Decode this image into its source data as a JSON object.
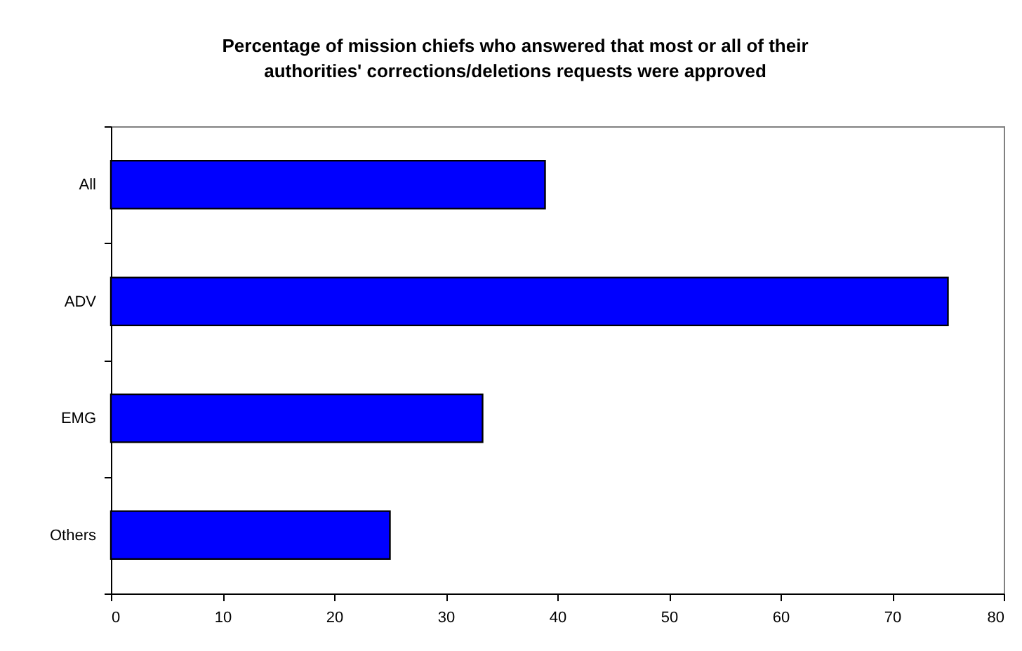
{
  "chart_data": {
    "type": "bar",
    "orientation": "horizontal",
    "title": "Percentage of mission chiefs who answered that most or all of their\nauthorities' corrections/deletions requests were approved",
    "categories": [
      "All",
      "ADV",
      "EMG",
      "Others"
    ],
    "values": [
      38.9,
      75,
      33.3,
      25
    ],
    "color": "#0000ff",
    "xlim": [
      0,
      80
    ],
    "xticks": [
      0,
      10,
      20,
      30,
      40,
      50,
      60,
      70,
      80
    ]
  }
}
